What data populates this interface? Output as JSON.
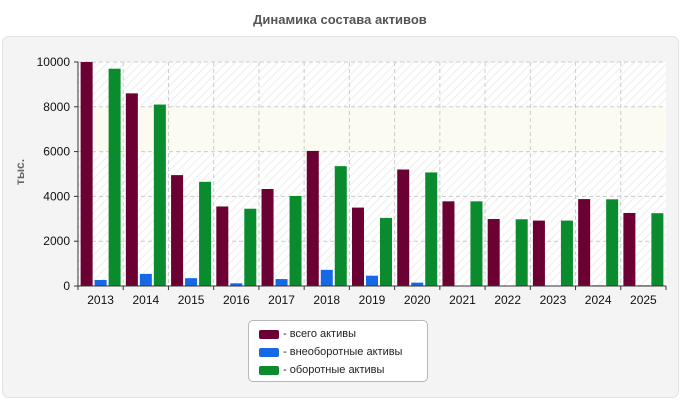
{
  "chart_data": {
    "type": "bar",
    "title": "Динамика состава активов",
    "ylabel": "тыс.",
    "xlabel": "",
    "categories": [
      "2013",
      "2014",
      "2015",
      "2016",
      "2017",
      "2018",
      "2019",
      "2020",
      "2021",
      "2022",
      "2023",
      "2024",
      "2025"
    ],
    "ylim": [
      0,
      10000
    ],
    "yticks": [
      0,
      2000,
      4000,
      6000,
      8000,
      10000
    ],
    "grid": true,
    "legend_position": "bottom",
    "series": [
      {
        "name": "- всего активы",
        "color": "#6b0032",
        "values": [
          10000,
          8600,
          4950,
          3550,
          4330,
          6030,
          3500,
          5200,
          3780,
          2990,
          2920,
          3880,
          3260
        ]
      },
      {
        "name": "- внеоборотные активы",
        "color": "#1569e6",
        "values": [
          270,
          540,
          350,
          120,
          310,
          720,
          460,
          150,
          20,
          15,
          20,
          30,
          30
        ]
      },
      {
        "name": "- оборотные активы",
        "color": "#0a8c2e",
        "values": [
          9700,
          8100,
          4650,
          3450,
          4020,
          5350,
          3040,
          5070,
          3780,
          2980,
          2920,
          3870,
          3250
        ]
      }
    ]
  }
}
